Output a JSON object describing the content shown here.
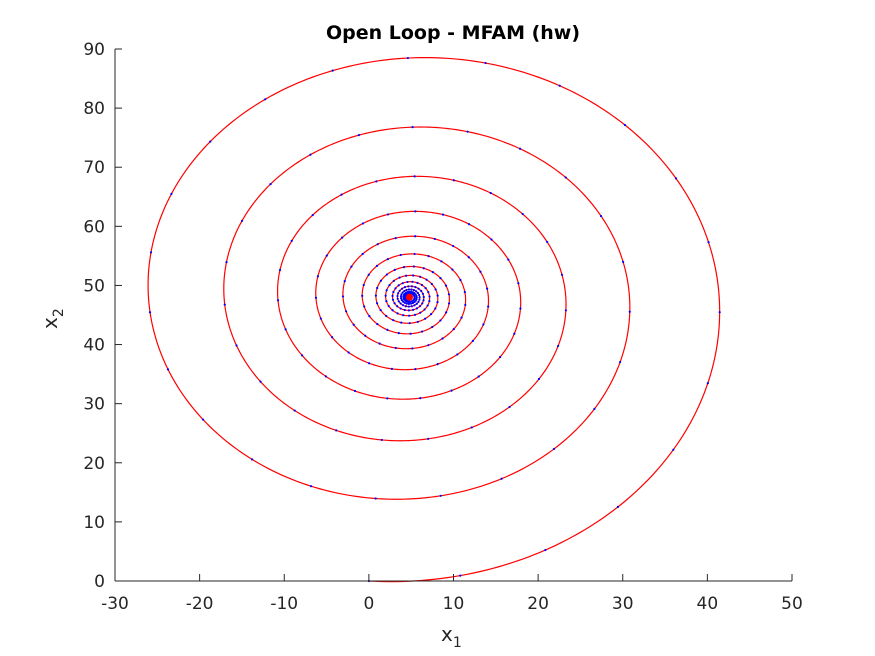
{
  "chart_data": {
    "type": "line",
    "title": "Open Loop - MFAM (hw)",
    "xlabel": {
      "base": "x",
      "sub": "1"
    },
    "ylabel": {
      "base": "x",
      "sub": "2"
    },
    "xlim": [
      -30,
      50
    ],
    "ylim": [
      0,
      90
    ],
    "xticks": [
      -30,
      -20,
      -10,
      0,
      10,
      20,
      30,
      40,
      50
    ],
    "yticks": [
      0,
      10,
      20,
      30,
      40,
      50,
      60,
      70,
      80,
      90
    ],
    "grid": false,
    "legend": "none",
    "series": [
      {
        "color": "#ff0000",
        "marker": "dot",
        "marker_color": "#0000ff",
        "description": "damped spiral trajectory starting at origin and converging to equilibrium",
        "start": [
          0,
          0
        ],
        "equilibrium": [
          4.8,
          48
        ],
        "outer_loops": [
          {
            "xmin": -28.5,
            "xmax": 44.7,
            "ymin": 0.0,
            "ymax": 88.2
          },
          {
            "xmin": -18.8,
            "xmax": 33.2,
            "ymin": 14.2,
            "ymax": 76.5
          },
          {
            "xmin": -12.0,
            "xmax": 24.8,
            "ymin": 24.0,
            "ymax": 67.8
          },
          {
            "xmin": -7.2,
            "xmax": 18.7,
            "ymin": 31.0,
            "ymax": 62.0
          }
        ]
      }
    ]
  }
}
